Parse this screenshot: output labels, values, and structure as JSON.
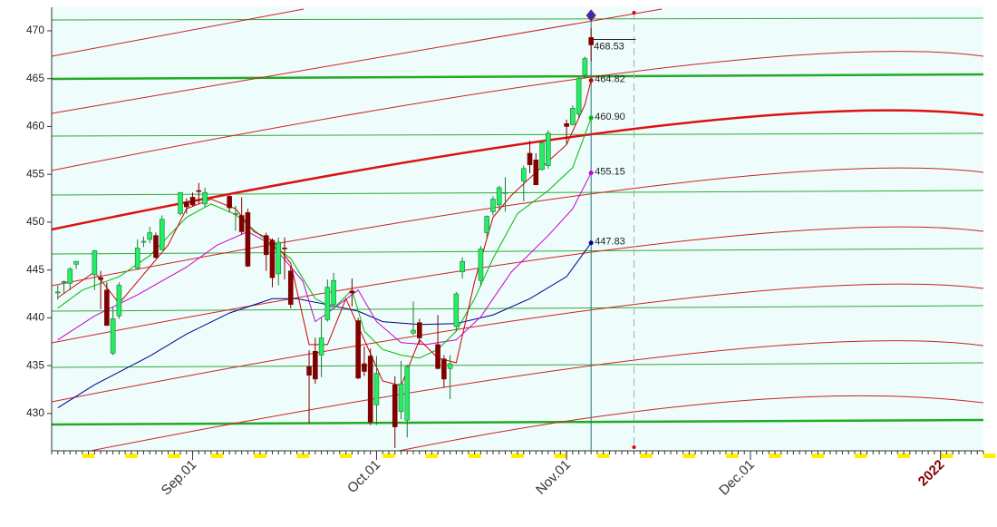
{
  "chart_data": {
    "type": "candlestick",
    "xlim": [
      "Aug.09",
      "Jan.08"
    ],
    "ylim": [
      426.1,
      472.46
    ],
    "yticks": [
      430,
      435,
      440,
      445,
      450,
      455,
      460,
      465,
      470
    ],
    "xticks": [
      "Sep.01",
      "Oct.01",
      "Nov.01",
      "Dec.01",
      "2022"
    ],
    "candles": {
      "up_color": "#22ee66",
      "down_color": "#800000",
      "x": [
        "Aug.10",
        "Aug.11",
        "Aug.12",
        "Aug.13",
        "Aug.16",
        "Aug.17",
        "Aug.18",
        "Aug.19",
        "Aug.20",
        "Aug.23",
        "Aug.24",
        "Aug.25",
        "Aug.26",
        "Aug.27",
        "Aug.30",
        "Aug.31",
        "Sep.01",
        "Sep.02",
        "Sep.03",
        "Sep.07",
        "Sep.08",
        "Sep.09",
        "Sep.10",
        "Sep.13",
        "Sep.14",
        "Sep.15",
        "Sep.16",
        "Sep.17",
        "Sep.20",
        "Sep.21",
        "Sep.22",
        "Sep.23",
        "Sep.24",
        "Sep.27",
        "Sep.28",
        "Sep.29",
        "Sep.30",
        "Oct.01",
        "Oct.04",
        "Oct.05",
        "Oct.06",
        "Oct.07",
        "Oct.08",
        "Oct.11",
        "Oct.12",
        "Oct.13",
        "Oct.14",
        "Oct.15",
        "Oct.18",
        "Oct.19",
        "Oct.20",
        "Oct.21",
        "Oct.22",
        "Oct.25",
        "Oct.26",
        "Oct.27",
        "Oct.28",
        "Oct.29",
        "Nov.01",
        "Nov.02",
        "Nov.03",
        "Nov.04",
        "Nov.05"
      ],
      "open": [
        442.6,
        443.8,
        443.6,
        445.6,
        444.5,
        444.2,
        442.9,
        436.3,
        440.2,
        445.2,
        447.9,
        448.2,
        448.6,
        447.1,
        450.9,
        452.1,
        452.6,
        453.3,
        451.9,
        452.7,
        450.9,
        450.7,
        451.0,
        448.6,
        448.1,
        444.6,
        447.3,
        444.9,
        434.9,
        436.5,
        436.1,
        439.8,
        441.4,
        442.8,
        439.7,
        435.2,
        436.0,
        430.9,
        433.0,
        430.2,
        429.3,
        438.4,
        439.5,
        437.2,
        435.7,
        434.7,
        439.1,
        444.8,
        443.9,
        448.9,
        451.1,
        451.8,
        453.1,
        454.3,
        457.2,
        456.5,
        455.5,
        455.9,
        460.3,
        460.2,
        461.3,
        465.4,
        469.3
      ],
      "high": [
        443.4,
        443.9,
        445.3,
        445.9,
        447.1,
        444.9,
        443.7,
        441.1,
        443.7,
        448.2,
        448.5,
        449.5,
        448.9,
        450.7,
        453.1,
        452.5,
        453.1,
        454.1,
        453.6,
        452.8,
        451.7,
        452.6,
        451.4,
        448.9,
        448.3,
        448.4,
        448.4,
        445.4,
        436.6,
        437.9,
        440.0,
        444.0,
        444.7,
        444.1,
        440.0,
        437.0,
        436.8,
        436.0,
        433.9,
        435.5,
        435.1,
        441.7,
        439.9,
        440.3,
        436.1,
        436.1,
        442.7,
        446.3,
        447.5,
        450.7,
        452.7,
        453.8,
        454.7,
        455.9,
        458.5,
        457.2,
        458.4,
        459.6,
        460.7,
        462.2,
        465.2,
        467.3,
        470.3
      ],
      "low": [
        441.9,
        442.6,
        442.9,
        445.1,
        442.9,
        440.9,
        439.2,
        436.1,
        439.9,
        445.0,
        447.4,
        447.8,
        446.2,
        447.1,
        450.7,
        450.9,
        451.6,
        451.9,
        451.6,
        451.0,
        449.1,
        448.7,
        445.3,
        444.9,
        443.2,
        443.4,
        444.0,
        441.0,
        429.0,
        433.1,
        433.8,
        439.6,
        441.2,
        441.2,
        433.6,
        433.9,
        428.8,
        428.8,
        426.4,
        429.4,
        427.5,
        438.2,
        437.2,
        434.6,
        432.7,
        431.5,
        438.6,
        444.1,
        443.3,
        448.3,
        450.7,
        451.3,
        451.1,
        452.2,
        455.1,
        453.9,
        455.4,
        455.6,
        458.2,
        460.1,
        460.8,
        465.0,
        466.8
      ],
      "close": [
        442.7,
        443.8,
        445.1,
        445.9,
        447.0,
        444.0,
        439.2,
        439.9,
        443.4,
        447.3,
        448.0,
        448.9,
        446.3,
        450.3,
        453.1,
        451.6,
        451.8,
        453.2,
        453.1,
        451.5,
        450.9,
        449.0,
        445.4,
        446.6,
        444.2,
        447.9,
        447.2,
        441.4,
        434.0,
        433.6,
        437.9,
        443.2,
        443.9,
        442.6,
        433.7,
        434.4,
        429.1,
        434.2,
        428.6,
        433.1,
        434.9,
        438.7,
        437.9,
        434.7,
        433.6,
        435.2,
        442.5,
        445.9,
        447.2,
        450.6,
        452.4,
        453.6,
        453.1,
        455.6,
        456.0,
        453.9,
        458.3,
        459.3,
        460.0,
        461.9,
        465.0,
        467.1,
        468.53
      ]
    },
    "series": [
      {
        "color": "#00008b",
        "x": [
          "Aug.10",
          "Aug.16",
          "Aug.25",
          "Aug.31",
          "Sep.07",
          "Sep.14",
          "Sep.18",
          "Sep.22",
          "Sep.28",
          "Oct.02",
          "Oct.08",
          "Oct.14",
          "Oct.20",
          "Oct.26",
          "Nov.01",
          "Nov.05"
        ],
        "values": [
          430.6,
          433,
          436,
          438.3,
          440.5,
          442,
          442,
          441.5,
          440.7,
          439.6,
          439.3,
          439.4,
          440.3,
          442,
          444.3,
          447.83
        ]
      },
      {
        "color": "#cc00cc",
        "x": [
          "Aug.10",
          "Aug.16",
          "Aug.23",
          "Aug.31",
          "Sep.05",
          "Sep.10",
          "Sep.14",
          "Sep.19",
          "Sep.21",
          "Sep.23",
          "Sep.28",
          "Oct.01",
          "Oct.05",
          "Oct.09",
          "Oct.14",
          "Oct.18",
          "Oct.23",
          "Oct.29",
          "Nov.02",
          "Nov.05"
        ],
        "values": [
          437.7,
          440.2,
          442.4,
          445.3,
          447.6,
          449,
          447.6,
          443.8,
          439.6,
          440.5,
          442.9,
          439.6,
          437.4,
          437.2,
          437.7,
          440.1,
          444.8,
          448.6,
          451.4,
          455.15
        ]
      },
      {
        "color": "#00bb00",
        "x": [
          "Aug.10",
          "Aug.14",
          "Aug.20",
          "Aug.25",
          "Aug.31",
          "Sep.04",
          "Sep.08",
          "Sep.13",
          "Sep.17",
          "Sep.21",
          "Sep.24",
          "Sep.27",
          "Sep.29",
          "Oct.02",
          "Oct.05",
          "Oct.08",
          "Oct.11",
          "Oct.14",
          "Oct.17",
          "Oct.20",
          "Oct.24",
          "Oct.29",
          "Nov.02",
          "Nov.05"
        ],
        "values": [
          441,
          442.9,
          444.3,
          446.5,
          450.5,
          451.9,
          450.8,
          448.1,
          446.2,
          442,
          441,
          442.9,
          438.6,
          436.7,
          436.1,
          435.8,
          436.7,
          438.6,
          442,
          446.2,
          450.9,
          453.3,
          455.7,
          460.9
        ],
        "value_labels": [
          null,
          null,
          null,
          null,
          null,
          null,
          null,
          null,
          null,
          null,
          null,
          null,
          null,
          null,
          null,
          null,
          null,
          null,
          null,
          null,
          null,
          null,
          null,
          "460.90"
        ]
      },
      {
        "color": "#cc0000",
        "x": [
          "Aug.10",
          "Aug.16",
          "Aug.20",
          "Aug.25",
          "Aug.28",
          "Aug.31",
          "Sep.04",
          "Sep.08",
          "Sep.11",
          "Sep.14",
          "Sep.17",
          "Sep.20",
          "Sep.23",
          "Sep.26",
          "Sep.29",
          "Oct.02",
          "Oct.05",
          "Oct.08",
          "Oct.11",
          "Oct.14",
          "Oct.17",
          "Oct.20",
          "Oct.23",
          "Oct.27",
          "Nov.01",
          "Nov.04",
          "Nov.05"
        ],
        "values": [
          442.1,
          444.8,
          441.5,
          445.3,
          447.6,
          451.4,
          452.4,
          451.4,
          449,
          448.1,
          445.7,
          437.2,
          437.2,
          442,
          437.7,
          433.4,
          432.9,
          437.7,
          435.8,
          435.3,
          443.8,
          450.5,
          452.8,
          455.2,
          458.1,
          462.3,
          464.82
        ]
      }
    ]
  }
}
